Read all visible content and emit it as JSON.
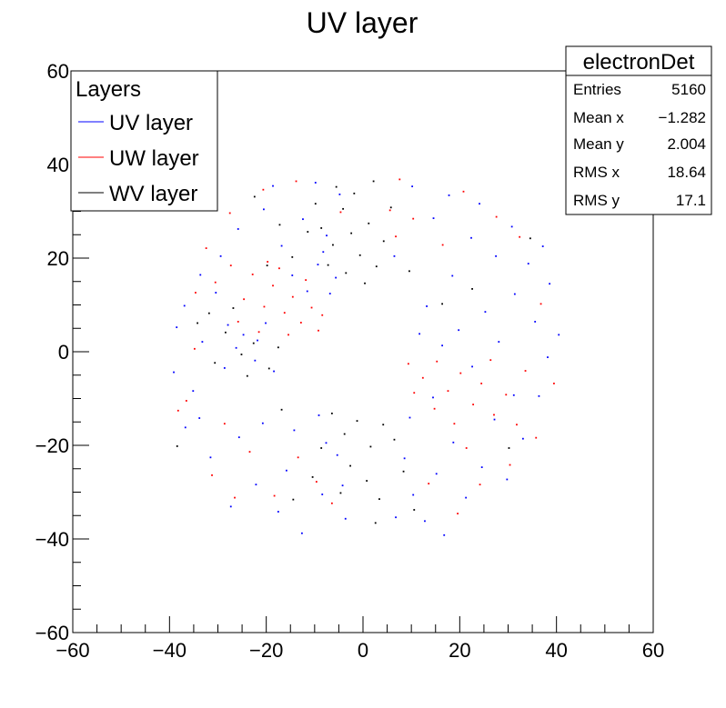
{
  "chart_data": {
    "type": "scatter",
    "title": "UV layer",
    "xlabel": "",
    "ylabel": "",
    "xlim": [
      -60,
      60
    ],
    "ylim": [
      -60,
      60
    ],
    "x_ticks": [
      -60,
      -40,
      -20,
      0,
      20,
      40,
      60
    ],
    "y_ticks": [
      -60,
      -40,
      -20,
      0,
      20,
      40,
      60
    ],
    "x_tick_labels": [
      "−60",
      "−40",
      "−20",
      "0",
      "20",
      "40",
      "60"
    ],
    "y_tick_labels": [
      "−60",
      "−40",
      "−20",
      "0",
      "20",
      "40",
      "60"
    ],
    "grid": false,
    "legend": {
      "title": "Layers",
      "placement": "top-left",
      "entries": [
        {
          "label": "UV layer",
          "color": "#0000ff"
        },
        {
          "label": "UW layer",
          "color": "#ff0000"
        },
        {
          "label": "WV layer",
          "color": "#000000"
        }
      ]
    },
    "stats_box": {
      "title": "electronDet",
      "placement": "top-right",
      "rows": [
        {
          "label": "Entries",
          "value": "5160"
        },
        {
          "label": "Mean x",
          "value": "−1.282"
        },
        {
          "label": "Mean y",
          "value": "2.004"
        },
        {
          "label": "RMS x",
          "value": "18.64"
        },
        {
          "label": "RMS y",
          "value": "17.1"
        }
      ]
    },
    "series": [
      {
        "name": "UV layer",
        "color": "#0000ff",
        "points": [
          [
            -38.5,
            5.2
          ],
          [
            -35.1,
            -8.4
          ],
          [
            -33.2,
            2.1
          ],
          [
            -30.4,
            12.6
          ],
          [
            -28.6,
            -3.5
          ],
          [
            -27.9,
            5.7
          ],
          [
            -26.2,
            0.8
          ],
          [
            -24.7,
            3.6
          ],
          [
            -22.3,
            -1.9
          ],
          [
            -21.8,
            2.4
          ],
          [
            -20.1,
            6.1
          ],
          [
            -18.4,
            -4.2
          ],
          [
            -25.6,
            -18.3
          ],
          [
            -22.1,
            -28.4
          ],
          [
            -17.5,
            -34.2
          ],
          [
            -12.6,
            -38.8
          ],
          [
            -8.4,
            -30.5
          ],
          [
            -5.3,
            -22.1
          ],
          [
            -3.6,
            -35.7
          ],
          [
            -9.1,
            -13.6
          ],
          [
            -31.5,
            -22.6
          ],
          [
            -27.3,
            -33.1
          ],
          [
            -15.8,
            -25.4
          ],
          [
            -20.7,
            -15.3
          ],
          [
            -33.8,
            -14.2
          ],
          [
            -14.2,
            -16.8
          ],
          [
            8.6,
            -22.8
          ],
          [
            10.4,
            -30.6
          ],
          [
            12.8,
            -36.2
          ],
          [
            15.2,
            -26.1
          ],
          [
            18.7,
            -19.4
          ],
          [
            21.3,
            -31.2
          ],
          [
            24.6,
            -24.7
          ],
          [
            27.2,
            -14.5
          ],
          [
            9.7,
            -14.1
          ],
          [
            14.5,
            -9.8
          ],
          [
            29.8,
            -27.3
          ],
          [
            33.1,
            -18.6
          ],
          [
            36.4,
            -9.5
          ],
          [
            38.2,
            -1.2
          ],
          [
            35.6,
            6.4
          ],
          [
            31.4,
            12.3
          ],
          [
            28.1,
            2.1
          ],
          [
            25.3,
            8.5
          ],
          [
            22.6,
            -3.2
          ],
          [
            19.8,
            4.6
          ],
          [
            16.4,
            1.3
          ],
          [
            13.2,
            9.7
          ],
          [
            11.7,
            3.8
          ],
          [
            18.5,
            16.2
          ],
          [
            22.4,
            24.3
          ],
          [
            27.5,
            20.4
          ],
          [
            30.8,
            26.7
          ],
          [
            34.2,
            18.8
          ],
          [
            38.6,
            14.5
          ],
          [
            14.6,
            28.5
          ],
          [
            10.2,
            35.3
          ],
          [
            17.8,
            33.4
          ],
          [
            24.1,
            31.6
          ],
          [
            6.5,
            20.4
          ],
          [
            -6.8,
            12.4
          ],
          [
            -9.3,
            18.6
          ],
          [
            -7.5,
            24.8
          ],
          [
            -12.4,
            28.3
          ],
          [
            -16.8,
            22.6
          ],
          [
            -20.5,
            30.4
          ],
          [
            -25.8,
            26.2
          ],
          [
            -29.4,
            20.4
          ],
          [
            -4.8,
            33.6
          ],
          [
            -9.8,
            36.1
          ],
          [
            -18.6,
            35.4
          ],
          [
            -14.6,
            16.3
          ],
          [
            -8.2,
            21.3
          ],
          [
            -5.6,
            15.8
          ],
          [
            -11.5,
            12.9
          ],
          [
            -33.6,
            16.4
          ],
          [
            -36.9,
            9.8
          ],
          [
            -39.1,
            -4.4
          ],
          [
            -36.7,
            -16.2
          ],
          [
            -7.6,
            -19.5
          ],
          [
            -4.2,
            -28.6
          ],
          [
            6.8,
            -35.4
          ],
          [
            16.8,
            -39.2
          ],
          [
            31.2,
            -9.3
          ],
          [
            40.5,
            3.6
          ],
          [
            37.2,
            22.5
          ]
        ]
      },
      {
        "name": "UW layer",
        "color": "#ff0000",
        "points": [
          [
            -30.5,
            14.8
          ],
          [
            -27.3,
            18.4
          ],
          [
            -24.6,
            11.2
          ],
          [
            -22.8,
            16.5
          ],
          [
            -20.4,
            9.6
          ],
          [
            -18.6,
            14.1
          ],
          [
            -16.2,
            8.3
          ],
          [
            -14.5,
            11.7
          ],
          [
            -12.8,
            6.2
          ],
          [
            -10.6,
            9.4
          ],
          [
            -9.2,
            4.5
          ],
          [
            -8.4,
            7.8
          ],
          [
            -19.7,
            19.2
          ],
          [
            -15.4,
            3.6
          ],
          [
            -25.8,
            6.4
          ],
          [
            -21.5,
            4.2
          ],
          [
            -34.6,
            12.6
          ],
          [
            -32.4,
            22.1
          ],
          [
            -17.3,
            17.8
          ],
          [
            -11.8,
            15.3
          ],
          [
            12.4,
            -5.6
          ],
          [
            15.3,
            -2.1
          ],
          [
            17.6,
            -8.4
          ],
          [
            20.2,
            -4.6
          ],
          [
            22.8,
            -11.3
          ],
          [
            24.5,
            -6.8
          ],
          [
            27.1,
            -13.5
          ],
          [
            29.6,
            -9.2
          ],
          [
            31.8,
            -15.6
          ],
          [
            14.8,
            -12.2
          ],
          [
            18.9,
            -15.4
          ],
          [
            10.6,
            -8.8
          ],
          [
            9.4,
            -2.6
          ],
          [
            26.4,
            -1.8
          ],
          [
            33.6,
            -4.1
          ],
          [
            35.8,
            -18.4
          ],
          [
            21.4,
            -20.6
          ],
          [
            -36.5,
            -10.5
          ],
          [
            -31.2,
            -26.4
          ],
          [
            -26.5,
            -31.2
          ],
          [
            -18.3,
            -30.8
          ],
          [
            -13.4,
            -22.6
          ],
          [
            -9.6,
            -27.8
          ],
          [
            -34.8,
            0.6
          ],
          [
            -6.4,
            -32.4
          ],
          [
            5.6,
            30.2
          ],
          [
            6.8,
            24.6
          ],
          [
            7.6,
            36.8
          ],
          [
            10.4,
            28.4
          ],
          [
            16.5,
            22.8
          ],
          [
            20.8,
            34.2
          ],
          [
            27.6,
            28.8
          ],
          [
            32.4,
            24.5
          ],
          [
            36.8,
            10.2
          ],
          [
            39.5,
            -6.8
          ],
          [
            13.6,
            -28.2
          ],
          [
            19.6,
            -34.6
          ],
          [
            24.2,
            -28.4
          ],
          [
            30.4,
            -24.2
          ],
          [
            -23.4,
            -21.4
          ],
          [
            -28.6,
            -15.4
          ],
          [
            -38.2,
            -12.6
          ],
          [
            -20.6,
            34.6
          ],
          [
            -13.8,
            36.4
          ],
          [
            -4.6,
            29.8
          ],
          [
            -27.5,
            29.6
          ]
        ]
      },
      {
        "name": "WV layer",
        "color": "#000000",
        "points": [
          [
            -8.6,
            26.4
          ],
          [
            -6.2,
            22.8
          ],
          [
            -4.1,
            30.5
          ],
          [
            -2.4,
            25.3
          ],
          [
            -0.6,
            20.6
          ],
          [
            1.2,
            27.4
          ],
          [
            2.8,
            18.2
          ],
          [
            4.3,
            23.6
          ],
          [
            -3.5,
            16.8
          ],
          [
            0.4,
            14.6
          ],
          [
            -1.8,
            33.8
          ],
          [
            2.2,
            36.4
          ],
          [
            -5.5,
            35.2
          ],
          [
            -11.4,
            25.6
          ],
          [
            -14.6,
            20.2
          ],
          [
            -17.2,
            27.1
          ],
          [
            -19.8,
            18.4
          ],
          [
            -9.8,
            31.6
          ],
          [
            5.8,
            30.8
          ],
          [
            -7.2,
            18.5
          ],
          [
            -28.4,
            4.1
          ],
          [
            -25.1,
            -0.6
          ],
          [
            -22.6,
            1.8
          ],
          [
            -30.6,
            -2.4
          ],
          [
            -19.4,
            -3.6
          ],
          [
            -31.8,
            8.2
          ],
          [
            -17.5,
            0.9
          ],
          [
            -34.2,
            6.1
          ],
          [
            -26.8,
            9.3
          ],
          [
            -23.9,
            -5.2
          ],
          [
            -6.4,
            -13.2
          ],
          [
            -3.8,
            -17.6
          ],
          [
            -1.2,
            -14.8
          ],
          [
            1.6,
            -20.3
          ],
          [
            4.2,
            -15.6
          ],
          [
            6.5,
            -18.8
          ],
          [
            -8.6,
            -20.6
          ],
          [
            -2.6,
            -24.4
          ],
          [
            0.8,
            -27.6
          ],
          [
            3.4,
            -31.5
          ],
          [
            -4.6,
            -30.2
          ],
          [
            8.4,
            -25.6
          ],
          [
            -10.4,
            -26.8
          ],
          [
            -14.4,
            -31.6
          ],
          [
            10.6,
            -33.8
          ],
          [
            -16.8,
            -12.4
          ],
          [
            16.4,
            10.2
          ],
          [
            22.6,
            13.4
          ],
          [
            9.6,
            17.2
          ],
          [
            -38.4,
            -20.2
          ],
          [
            -22.4,
            33.1
          ],
          [
            2.6,
            -36.6
          ],
          [
            30.2,
            -20.6
          ],
          [
            34.6,
            24.2
          ]
        ]
      }
    ]
  }
}
